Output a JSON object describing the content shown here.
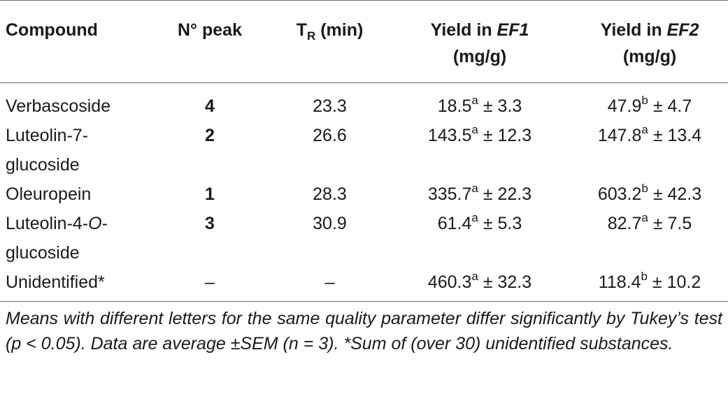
{
  "header": {
    "compound": "Compound",
    "peak": "N° peak",
    "tr_main": "T",
    "tr_sub": "R",
    "tr_unit": "(min)",
    "ef1_prefix": "Yield in ",
    "ef1_name": "EF1",
    "ef1_unit": "(mg/g)",
    "ef2_prefix": "Yield in ",
    "ef2_name": "EF2",
    "ef2_unit": "(mg/g)"
  },
  "rows": [
    {
      "compound_line1": "Verbascoside",
      "compound_line2": "",
      "peak": "4",
      "tr": "23.3",
      "ef1_value": "18.5",
      "ef1_letter": "a",
      "ef1_sem": " ± 3.3",
      "ef2_value": "47.9",
      "ef2_letter": "b",
      "ef2_sem": " ± 4.7"
    },
    {
      "compound_line1": "Luteolin-7-",
      "compound_line2": "glucoside",
      "peak": "2",
      "tr": "26.6",
      "ef1_value": "143.5",
      "ef1_letter": "a",
      "ef1_sem": " ± 12.3",
      "ef2_value": "147.8",
      "ef2_letter": "a",
      "ef2_sem": " ± 13.4"
    },
    {
      "compound_line1": "Oleuropein",
      "compound_line2": "",
      "peak": "1",
      "tr": "28.3",
      "ef1_value": "335.7",
      "ef1_letter": "a",
      "ef1_sem": " ± 22.3",
      "ef2_value": "603.2",
      "ef2_letter": "b",
      "ef2_sem": " ± 42.3"
    },
    {
      "compound_line1_pre": "Luteolin-4-",
      "compound_line1_ital": "O",
      "compound_line1_post": "-",
      "compound_line2": "glucoside",
      "peak": "3",
      "tr": "30.9",
      "ef1_value": "61.4",
      "ef1_letter": "a",
      "ef1_sem": " ± 5.3",
      "ef2_value": "82.7",
      "ef2_letter": "a",
      "ef2_sem": " ± 7.5"
    },
    {
      "compound_line1": "Unidentified*",
      "compound_line2": "",
      "peak": "–",
      "tr": "–",
      "ef1_value": "460.3",
      "ef1_letter": "a",
      "ef1_sem": " ± 32.3",
      "ef2_value": "118.4",
      "ef2_letter": "b",
      "ef2_sem": " ± 10.2"
    }
  ],
  "footnote": "Means with different letters for the same quality parameter differ significantly by Tukey’s test (p < 0.05). Data are average ±SEM (n = 3). *Sum of (over 30) unidentified substances."
}
